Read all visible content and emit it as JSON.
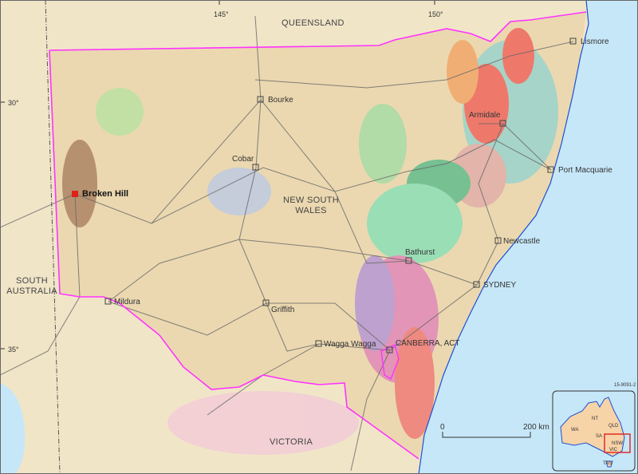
{
  "graticule": {
    "lon": [
      "145°",
      "150°"
    ],
    "lat": [
      "30°",
      "35°"
    ]
  },
  "states": {
    "queensland": "QUEENSLAND",
    "nsw_line1": "NEW SOUTH",
    "nsw_line2": "WALES",
    "sa_line1": "SOUTH",
    "sa_line2": "AUSTRALIA",
    "victoria": "VICTORIA"
  },
  "places": {
    "lismore": "Lismore",
    "armidale": "Armidale",
    "port_macquarie": "Port Macquarie",
    "newcastle": "Newcastle",
    "sydney": "SYDNEY",
    "bathurst": "Bathurst",
    "canberra": "CANBERRA, ACT",
    "wagga": "Wagga Wagga",
    "griffith": "Griffith",
    "mildura": "Mildura",
    "cobar": "Cobar",
    "bourke": "Bourke",
    "broken_hill": "Broken Hill"
  },
  "reference_code": "15-9091-2",
  "scale_bar": {
    "start": "0",
    "end": "200 km"
  },
  "inset": {
    "labels": [
      "WA",
      "NT",
      "QLD",
      "SA",
      "NSW",
      "VIC",
      "TAS"
    ]
  },
  "colors": {
    "border": "#ff33ff",
    "ocean": "#c6e7f8",
    "land": "#efe2c2",
    "highlight": "#e0201b"
  }
}
